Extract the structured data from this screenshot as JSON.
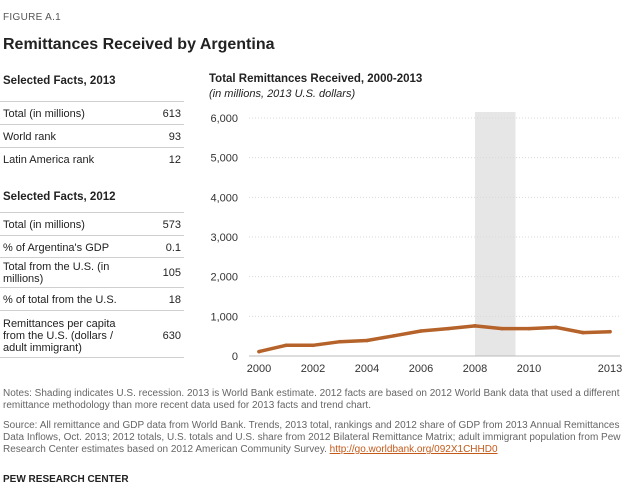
{
  "figure_label": "FIGURE A.1",
  "title": "Remittances Received by Argentina",
  "facts_2013": {
    "heading": "Selected Facts, 2013",
    "rows": [
      {
        "label": "Total (in millions)",
        "value": "613"
      },
      {
        "label": "World rank",
        "value": "93"
      },
      {
        "label": "Latin America rank",
        "value": "12"
      }
    ]
  },
  "facts_2012": {
    "heading": "Selected Facts, 2012",
    "rows": [
      {
        "label": "Total (in millions)",
        "value": "573"
      },
      {
        "label": "% of Argentina's GDP",
        "value": "0.1"
      },
      {
        "label": "Total from the U.S. (in millions)",
        "value": "105"
      },
      {
        "label": "% of total from the U.S.",
        "value": "18"
      },
      {
        "label": "Remittances per capita from the U.S. (dollars / adult immigrant)",
        "value": "630"
      }
    ]
  },
  "chart_data": {
    "type": "line",
    "title": "Total Remittances Received,  2000-2013",
    "subtitle": "(in millions, 2013 U.S. dollars)",
    "x": [
      2000,
      2001,
      2002,
      2003,
      2004,
      2005,
      2006,
      2007,
      2008,
      2009,
      2010,
      2011,
      2012,
      2013
    ],
    "values": [
      110,
      270,
      270,
      360,
      390,
      510,
      630,
      690,
      760,
      690,
      690,
      720,
      590,
      613
    ],
    "x_tick_labels": [
      "2000",
      "2002",
      "2004",
      "2006",
      "2008",
      "2010",
      "2013"
    ],
    "x_ticks": [
      2000,
      2002,
      2004,
      2006,
      2008,
      2010,
      2013
    ],
    "y_tick_labels": [
      "0",
      "1,000",
      "2,000",
      "3,000",
      "4,000",
      "5,000",
      "6,000"
    ],
    "y_ticks": [
      0,
      1000,
      2000,
      3000,
      4000,
      5000,
      6000
    ],
    "ylim": [
      0,
      6000
    ],
    "xlim": [
      2000,
      2013
    ],
    "recession_shade": [
      2008,
      2009.5
    ],
    "line_color": "#b5632a",
    "shade_color": "#e6e6e6",
    "grid": true
  },
  "notes": "Notes: Shading indicates U.S. recession. 2013 is World Bank estimate. 2012 facts are based on 2012 World Bank data that used a different remittance methodology than more recent data used for 2013 facts and trend chart.",
  "source_text": "Source: All remittance and GDP data from World Bank. Trends, 2013 total, rankings and 2012 share of GDP from 2013 Annual Remittances Data Inflows, Oct. 2013; 2012 totals, U.S. totals and U.S. share from 2012 Bilateral Remittance Matrix; adult immigrant population from Pew Research Center estimates based on 2012 American Community Survey.",
  "source_link": "http://go.worldbank.org/092X1CHHD0",
  "credit": "PEW RESEARCH CENTER"
}
